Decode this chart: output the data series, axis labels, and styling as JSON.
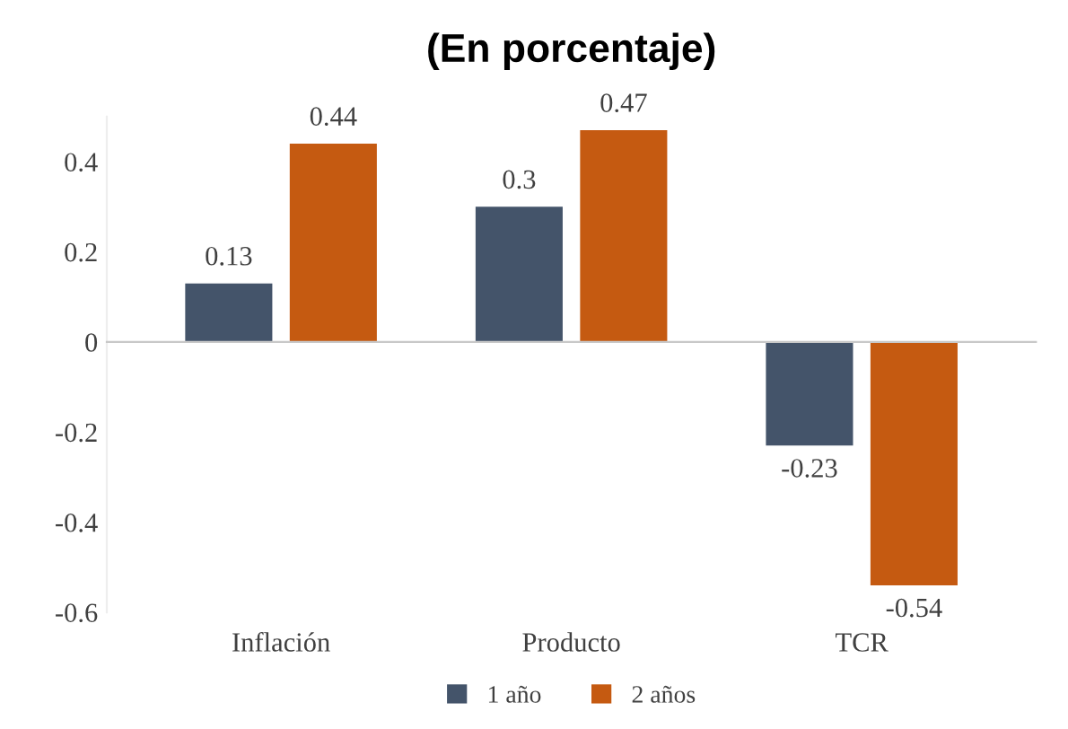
{
  "chart_data": {
    "type": "bar",
    "title": "(En porcentaje)",
    "categories": [
      "Inflación",
      "Producto",
      "TCR"
    ],
    "series": [
      {
        "name": "1 año",
        "color": "#44546a",
        "values": [
          0.13,
          0.3,
          -0.23
        ]
      },
      {
        "name": "2 años",
        "color": "#c55a11",
        "values": [
          0.44,
          0.47,
          -0.54
        ]
      }
    ],
    "ylim": [
      -0.6,
      0.5
    ],
    "yticks": [
      -0.6,
      -0.4,
      -0.2,
      0,
      0.2,
      0.4
    ],
    "legend": "bottom",
    "data_labels": true
  }
}
